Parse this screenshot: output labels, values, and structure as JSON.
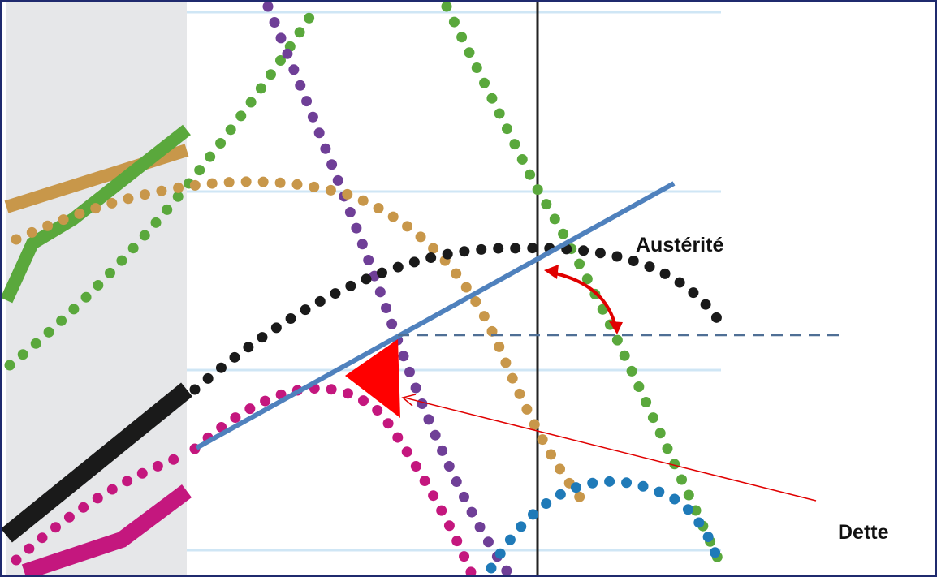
{
  "annotations": [
    {
      "label": "Austérité"
    },
    {
      "label": "Dette"
    }
  ]
}
